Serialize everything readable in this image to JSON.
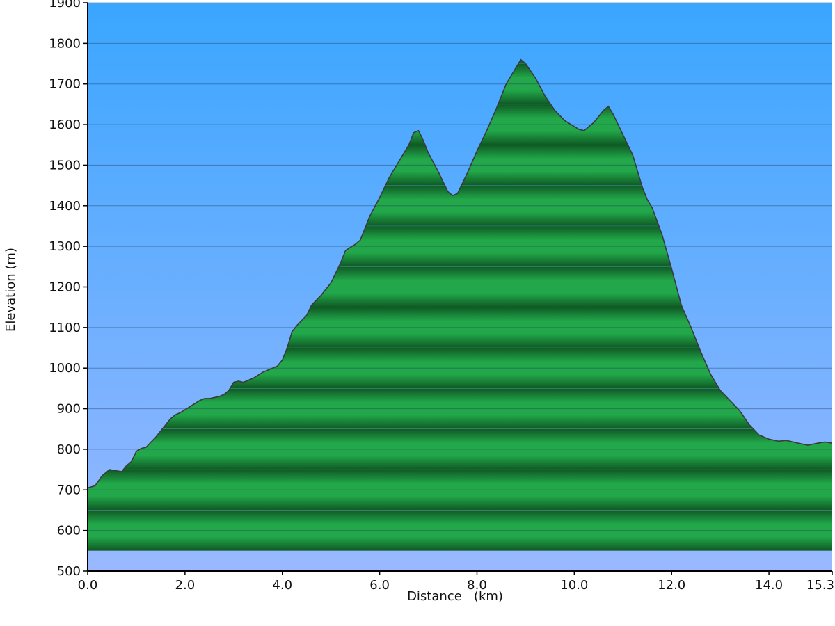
{
  "chart_data": {
    "type": "area",
    "title": "",
    "xlabel": "Distance   (km)",
    "ylabel": "Elevation (m)",
    "xlim": [
      0,
      15.3
    ],
    "ylim": [
      500,
      1900
    ],
    "x_ticks": [
      0,
      2,
      4,
      6,
      8,
      10,
      12,
      14,
      15.3
    ],
    "x_tick_labels": [
      "0.0",
      "2.0",
      "4.0",
      "6.0",
      "8.0",
      "10.0",
      "12.0",
      "14.0",
      "15.3"
    ],
    "y_ticks": [
      500,
      600,
      700,
      800,
      900,
      1000,
      1100,
      1200,
      1300,
      1400,
      1500,
      1600,
      1700,
      1800,
      1900
    ],
    "y_tick_labels": [
      "500",
      "600",
      "700",
      "800",
      "900",
      "1000",
      "1100",
      "1200",
      "1300",
      "1400",
      "1500",
      "1600",
      "1700",
      "1800",
      "1900"
    ],
    "grid": true,
    "legend": "none",
    "colors": {
      "sky_top": "#3aa6ff",
      "sky_bottom": "#9ab8ff",
      "fill_light": "#22a84a",
      "fill_dark": "#0f5a24",
      "outline": "#3a3a3a"
    },
    "series": [
      {
        "x": [
          0.0,
          0.15,
          0.3,
          0.45,
          0.55,
          0.7,
          0.8,
          0.9,
          1.0,
          1.1,
          1.2,
          1.4,
          1.6,
          1.7,
          1.8,
          1.9,
          2.1,
          2.3,
          2.4,
          2.5,
          2.7,
          2.8,
          2.9,
          3.0,
          3.1,
          3.2,
          3.4,
          3.6,
          3.7,
          3.9,
          4.0,
          4.1,
          4.2,
          4.3,
          4.5,
          4.6,
          4.8,
          4.9,
          5.0,
          5.1,
          5.2,
          5.3,
          5.5,
          5.6,
          5.7,
          5.8,
          6.0,
          6.2,
          6.3,
          6.4,
          6.6,
          6.7,
          6.8,
          6.9,
          7.0,
          7.2,
          7.4,
          7.5,
          7.6,
          7.8,
          8.0,
          8.2,
          8.4,
          8.6,
          8.8,
          8.9,
          9.0,
          9.2,
          9.4,
          9.6,
          9.8,
          10.0,
          10.1,
          10.2,
          10.4,
          10.6,
          10.7,
          10.8,
          11.0,
          11.2,
          11.4,
          11.5,
          11.6,
          11.8,
          12.0,
          12.2,
          12.4,
          12.6,
          12.8,
          13.0,
          13.2,
          13.4,
          13.6,
          13.8,
          14.0,
          14.2,
          14.35,
          14.5,
          14.6,
          14.8,
          15.0,
          15.15,
          15.3
        ],
        "y": [
          705,
          710,
          735,
          750,
          748,
          745,
          760,
          770,
          795,
          802,
          805,
          830,
          860,
          875,
          885,
          890,
          905,
          920,
          925,
          925,
          930,
          935,
          945,
          965,
          968,
          965,
          975,
          990,
          995,
          1005,
          1020,
          1050,
          1090,
          1105,
          1130,
          1155,
          1180,
          1195,
          1210,
          1235,
          1260,
          1290,
          1305,
          1315,
          1345,
          1375,
          1420,
          1470,
          1490,
          1510,
          1550,
          1580,
          1585,
          1560,
          1530,
          1485,
          1435,
          1425,
          1430,
          1480,
          1535,
          1585,
          1640,
          1700,
          1740,
          1760,
          1750,
          1715,
          1670,
          1635,
          1610,
          1595,
          1588,
          1585,
          1605,
          1635,
          1645,
          1625,
          1575,
          1525,
          1445,
          1415,
          1395,
          1330,
          1245,
          1155,
          1100,
          1040,
          985,
          945,
          920,
          895,
          860,
          835,
          825,
          820,
          822,
          818,
          815,
          810,
          815,
          818,
          815
        ]
      }
    ]
  }
}
